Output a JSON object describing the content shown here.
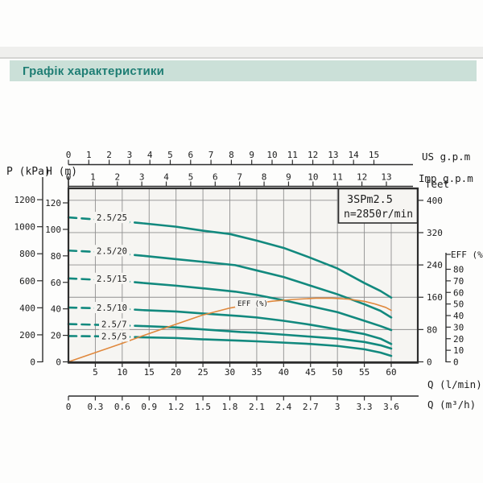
{
  "header": {
    "title": "Графік характеристики"
  },
  "chart_data": {
    "type": "line",
    "title": "3SPm2.5",
    "subtitle": "n=2850r/min",
    "x_primary": {
      "label": "Q (l/min)",
      "range": [
        0,
        60
      ],
      "ticks": [
        5,
        10,
        15,
        20,
        25,
        30,
        35,
        40,
        45,
        50,
        55,
        60
      ]
    },
    "x_top_us": {
      "label": "US g.p.m",
      "lmin_per_unit": 3.7854,
      "ticks": [
        0,
        1,
        2,
        3,
        4,
        5,
        6,
        7,
        8,
        9,
        10,
        11,
        12,
        13,
        14,
        15
      ]
    },
    "x_top_imp": {
      "label": "Imp g.p.m",
      "lmin_per_unit": 4.5461,
      "ticks": [
        0,
        1,
        2,
        3,
        4,
        5,
        6,
        7,
        8,
        9,
        10,
        11,
        12,
        13
      ]
    },
    "x_bottom_m3h": {
      "label": "Q (m³/h)",
      "lmin_per_unit": 16.667,
      "ticks": [
        0,
        0.3,
        0.6,
        0.9,
        1.2,
        1.5,
        1.8,
        2.1,
        2.4,
        2.7,
        3,
        3.3,
        3.6
      ]
    },
    "y_h": {
      "label": "H (m)",
      "range": [
        0,
        131
      ],
      "ticks": [
        0,
        20,
        40,
        60,
        80,
        100,
        120
      ]
    },
    "y_kpa": {
      "label": "P (kPa)",
      "m_per_unit": 0.10199,
      "ticks": [
        0,
        200,
        400,
        600,
        800,
        1000,
        1200
      ]
    },
    "y_feet": {
      "label": "feet",
      "m_per_unit": 0.3048,
      "ticks": [
        0,
        80,
        160,
        240,
        320,
        400
      ]
    },
    "y_eff": {
      "label": "EFF (%)",
      "ticks": [
        0,
        10,
        20,
        30,
        40,
        50,
        60,
        70,
        80
      ]
    },
    "grid": "on",
    "series": [
      {
        "name": "2.5/25",
        "points": [
          [
            0,
            109
          ],
          [
            5,
            107.5
          ],
          [
            10,
            106
          ],
          [
            14,
            104.5
          ],
          [
            20,
            102
          ],
          [
            25,
            99
          ],
          [
            30,
            96.5
          ],
          [
            35,
            91.5
          ],
          [
            40,
            86
          ],
          [
            45,
            78.5
          ],
          [
            50,
            70.5
          ],
          [
            55,
            59.5
          ],
          [
            58,
            53.5
          ],
          [
            60,
            48.5
          ]
        ]
      },
      {
        "name": "2.5/20",
        "points": [
          [
            0,
            84
          ],
          [
            5,
            83
          ],
          [
            10,
            81.5
          ],
          [
            14,
            80
          ],
          [
            20,
            77.5
          ],
          [
            25,
            75.5
          ],
          [
            31,
            73
          ],
          [
            35,
            69
          ],
          [
            40,
            64
          ],
          [
            45,
            57.5
          ],
          [
            50,
            51
          ],
          [
            55,
            43.5
          ],
          [
            58,
            38.5
          ],
          [
            60,
            33.5
          ]
        ]
      },
      {
        "name": "2.5/15",
        "points": [
          [
            0,
            63
          ],
          [
            5,
            62
          ],
          [
            10,
            61
          ],
          [
            14,
            59.5
          ],
          [
            20,
            57.5
          ],
          [
            25,
            55.5
          ],
          [
            31,
            53
          ],
          [
            35,
            50.5
          ],
          [
            40,
            46.5
          ],
          [
            45,
            42
          ],
          [
            50,
            37.5
          ],
          [
            55,
            31
          ],
          [
            58,
            27
          ],
          [
            60,
            24
          ]
        ]
      },
      {
        "name": "2.5/10",
        "points": [
          [
            0,
            41
          ],
          [
            5,
            40.5
          ],
          [
            10,
            40
          ],
          [
            14,
            39
          ],
          [
            20,
            38
          ],
          [
            25,
            36.5
          ],
          [
            32,
            34.5
          ],
          [
            35,
            33.5
          ],
          [
            40,
            31
          ],
          [
            45,
            28
          ],
          [
            50,
            24.5
          ],
          [
            55,
            21
          ],
          [
            58,
            17.5
          ],
          [
            60,
            13.5
          ]
        ]
      },
      {
        "name": "2.5/7",
        "points": [
          [
            0,
            28.5
          ],
          [
            5,
            28
          ],
          [
            10,
            27.5
          ],
          [
            14,
            27
          ],
          [
            20,
            26
          ],
          [
            25,
            24.5
          ],
          [
            32,
            22.5
          ],
          [
            35,
            22
          ],
          [
            40,
            20.5
          ],
          [
            45,
            19
          ],
          [
            50,
            17.5
          ],
          [
            55,
            15
          ],
          [
            58,
            12.5
          ],
          [
            60,
            10
          ]
        ]
      },
      {
        "name": "2.5/5",
        "points": [
          [
            0,
            19.5
          ],
          [
            5,
            19.3
          ],
          [
            10,
            19
          ],
          [
            14,
            18.5
          ],
          [
            20,
            18
          ],
          [
            25,
            17
          ],
          [
            32,
            16
          ],
          [
            35,
            15.5
          ],
          [
            40,
            14.5
          ],
          [
            45,
            13.5
          ],
          [
            50,
            12
          ],
          [
            55,
            9.5
          ],
          [
            58,
            7
          ],
          [
            60,
            4.5
          ]
        ]
      }
    ],
    "efficiency": {
      "label": "EFF (%)",
      "points": [
        [
          0,
          0
        ],
        [
          5,
          8
        ],
        [
          10,
          16
        ],
        [
          13.5,
          22
        ],
        [
          20,
          32.5
        ],
        [
          25,
          40.5
        ],
        [
          30,
          46.5
        ],
        [
          34,
          50
        ],
        [
          38,
          52.5
        ],
        [
          42,
          54
        ],
        [
          46,
          55
        ],
        [
          49,
          55
        ],
        [
          52,
          54.2
        ],
        [
          55,
          52.3
        ],
        [
          57,
          50
        ],
        [
          59,
          47
        ],
        [
          60,
          44.5
        ]
      ]
    },
    "colors": {
      "curve": "#12897e",
      "efficiency": "#e0883c",
      "grid": "#8f8f8f",
      "axis": "#2d2d2d",
      "text": "#1c1c1c",
      "plot_bg": "#f6f5f2",
      "header_bg": "#cbe0d8",
      "header_text": "#1f7e74"
    }
  }
}
